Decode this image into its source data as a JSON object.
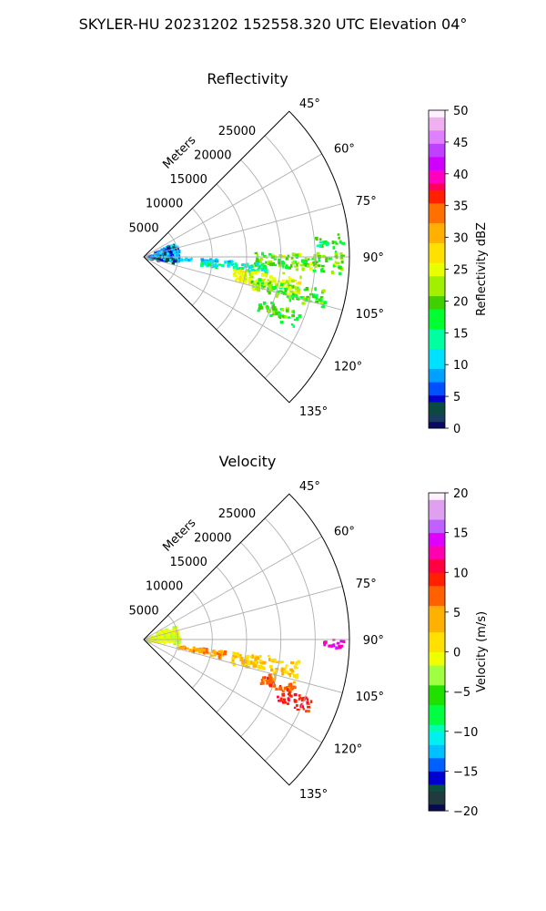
{
  "figure": {
    "title": "SKYLER-HU  20231202  152558.320 UTC Elevation 04°"
  },
  "colors": {
    "grid": "#b0b0b0",
    "frame": "#000000",
    "background": "#ffffff"
  },
  "chart_data": [
    {
      "type": "heatmap",
      "subtype": "polar-sector-ppi",
      "title": "Reflectivity",
      "radius_label": "Meters",
      "theta_range_deg": [
        45,
        135
      ],
      "theta_ticks": [
        "45°",
        "60°",
        "75°",
        "90°",
        "105°",
        "120°",
        "135°"
      ],
      "r_range_m": [
        0,
        30000
      ],
      "r_ticks": [
        5000,
        10000,
        15000,
        20000,
        25000
      ],
      "r_tick_labels": [
        "5000",
        "10000",
        "15000",
        "20000",
        "25000"
      ],
      "grid": true,
      "colorbar": {
        "label": "Reflectivity dBZ",
        "range": [
          0,
          50
        ],
        "ticks": [
          "0",
          "5",
          "10",
          "15",
          "20",
          "25",
          "30",
          "35",
          "40",
          "45",
          "50"
        ],
        "stops": [
          {
            "v": 0,
            "c": "#0a0a60"
          },
          {
            "v": 1.5,
            "c": "#1a3a60"
          },
          {
            "v": 3,
            "c": "#0a4a40"
          },
          {
            "v": 4.5,
            "c": "#0000c8"
          },
          {
            "v": 6.5,
            "c": "#0050ff"
          },
          {
            "v": 8.5,
            "c": "#00a0ff"
          },
          {
            "v": 11,
            "c": "#00e0ff"
          },
          {
            "v": 14,
            "c": "#00ffa0"
          },
          {
            "v": 17,
            "c": "#00ff30"
          },
          {
            "v": 20,
            "c": "#40d000"
          },
          {
            "v": 22.5,
            "c": "#a0f000"
          },
          {
            "v": 25,
            "c": "#e8ff00"
          },
          {
            "v": 28,
            "c": "#ffe000"
          },
          {
            "v": 31,
            "c": "#ffb000"
          },
          {
            "v": 34,
            "c": "#ff7000"
          },
          {
            "v": 36,
            "c": "#ff2000"
          },
          {
            "v": 38,
            "c": "#ff0060"
          },
          {
            "v": 40,
            "c": "#ff00c0"
          },
          {
            "v": 42,
            "c": "#d000ff"
          },
          {
            "v": 44,
            "c": "#c040ff"
          },
          {
            "v": 46,
            "c": "#e080ff"
          },
          {
            "v": 48,
            "c": "#f0b0f0"
          },
          {
            "v": 50,
            "c": "#fff0ff"
          }
        ]
      },
      "echo_regions": [
        {
          "theta": 91,
          "r_min": 16000,
          "r_max": 29000,
          "theta_width": 6,
          "value": 20,
          "spread": 4
        },
        {
          "theta": 92,
          "r_min": 5000,
          "r_max": 13000,
          "theta_width": 2,
          "value": 10,
          "spread": 2
        },
        {
          "theta": 95,
          "r_min": 8000,
          "r_max": 18000,
          "theta_width": 4,
          "value": 14,
          "spread": 4
        },
        {
          "theta": 100,
          "r_min": 13000,
          "r_max": 23000,
          "theta_width": 6,
          "value": 25,
          "spread": 3
        },
        {
          "theta": 103,
          "r_min": 16000,
          "r_max": 27000,
          "theta_width": 5,
          "value": 20,
          "spread": 5
        },
        {
          "theta": 112,
          "r_min": 18000,
          "r_max": 24000,
          "theta_width": 5,
          "value": 19,
          "spread": 4
        },
        {
          "theta": 85,
          "r_min": 25000,
          "r_max": 29000,
          "theta_width": 3,
          "value": 17,
          "spread": 3
        },
        {
          "theta": 80,
          "r_min": 500,
          "r_max": 5000,
          "theta_width": 30,
          "value": 7,
          "spread": 5
        }
      ]
    },
    {
      "type": "heatmap",
      "subtype": "polar-sector-ppi",
      "title": "Velocity",
      "radius_label": "Meters",
      "theta_range_deg": [
        45,
        135
      ],
      "theta_ticks": [
        "45°",
        "60°",
        "75°",
        "90°",
        "105°",
        "120°",
        "135°"
      ],
      "r_range_m": [
        0,
        30000
      ],
      "r_ticks": [
        5000,
        10000,
        15000,
        20000,
        25000
      ],
      "r_tick_labels": [
        "5000",
        "10000",
        "15000",
        "20000",
        "25000"
      ],
      "grid": true,
      "colorbar": {
        "label": "Velocity (m/s)",
        "range": [
          -20,
          20
        ],
        "ticks": [
          "−20",
          "−15",
          "−10",
          "−5",
          "0",
          "5",
          "10",
          "15",
          "20"
        ],
        "stops": [
          {
            "v": -20,
            "c": "#0a0a50"
          },
          {
            "v": -18.5,
            "c": "#203a40"
          },
          {
            "v": -17,
            "c": "#0a5040"
          },
          {
            "v": -15.5,
            "c": "#0000d0"
          },
          {
            "v": -14,
            "c": "#0060ff"
          },
          {
            "v": -12.5,
            "c": "#00c0ff"
          },
          {
            "v": -11,
            "c": "#00f0f0"
          },
          {
            "v": -9.5,
            "c": "#00ffb0"
          },
          {
            "v": -8,
            "c": "#00ff40"
          },
          {
            "v": -5.5,
            "c": "#20e000"
          },
          {
            "v": -3,
            "c": "#a0ff40"
          },
          {
            "v": -1,
            "c": "#f0ff00"
          },
          {
            "v": 1.5,
            "c": "#ffe000"
          },
          {
            "v": 4,
            "c": "#ffb000"
          },
          {
            "v": 7,
            "c": "#ff6000"
          },
          {
            "v": 9,
            "c": "#ff2000"
          },
          {
            "v": 11,
            "c": "#ff0040"
          },
          {
            "v": 12.5,
            "c": "#ff00b0"
          },
          {
            "v": 14,
            "c": "#e000ff"
          },
          {
            "v": 16,
            "c": "#c060ff"
          },
          {
            "v": 18,
            "c": "#e0a0f0"
          },
          {
            "v": 20,
            "c": "#fff0ff"
          }
        ]
      },
      "echo_regions": [
        {
          "theta": 91,
          "r_min": 26000,
          "r_max": 29000,
          "theta_width": 3,
          "value": 13,
          "spread": 1
        },
        {
          "theta": 100,
          "r_min": 5000,
          "r_max": 12000,
          "theta_width": 4,
          "value": 5,
          "spread": 2
        },
        {
          "theta": 101,
          "r_min": 13000,
          "r_max": 23000,
          "theta_width": 6,
          "value": 3,
          "spread": 1.5
        },
        {
          "theta": 108,
          "r_min": 18000,
          "r_max": 23000,
          "theta_width": 5,
          "value": 7,
          "spread": 2
        },
        {
          "theta": 112,
          "r_min": 21000,
          "r_max": 26000,
          "theta_width": 5,
          "value": 9,
          "spread": 1.5
        },
        {
          "theta": 78,
          "r_min": 500,
          "r_max": 5000,
          "theta_width": 30,
          "value": -1,
          "spread": 2
        }
      ]
    }
  ]
}
